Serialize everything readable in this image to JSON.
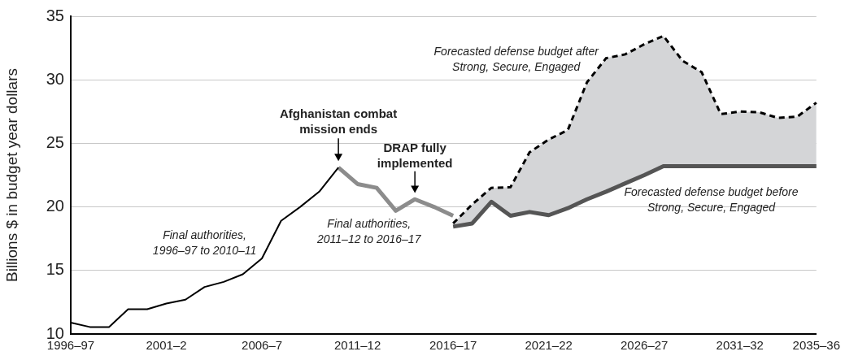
{
  "chart_data": {
    "type": "line",
    "ylabel": "Billions $ in budget year dollars",
    "categories": [
      "1996–97",
      null,
      null,
      null,
      null,
      "2001–2",
      null,
      null,
      null,
      null,
      "2006–7",
      null,
      null,
      null,
      null,
      "2011–12",
      null,
      null,
      null,
      null,
      "2016–17",
      null,
      null,
      null,
      null,
      "2021–22",
      null,
      null,
      null,
      null,
      "2026–27",
      null,
      null,
      null,
      null,
      "2031–32",
      null,
      null,
      null,
      "2035–36"
    ],
    "series": [
      {
        "color": "#000000",
        "line_style": "solid",
        "values": [
          10.9,
          10.55,
          10.55,
          11.95,
          11.95,
          12.4,
          12.7,
          13.7,
          14.1,
          14.7,
          15.95,
          18.9,
          20.0,
          21.2,
          23.1,
          null,
          null,
          null,
          null,
          null,
          null,
          null,
          null,
          null,
          null,
          null,
          null,
          null,
          null,
          null,
          null,
          null,
          null,
          null,
          null,
          null,
          null,
          null,
          null,
          null
        ]
      },
      {
        "color": "#8c8c8c",
        "line_style": "solid",
        "values": [
          null,
          null,
          null,
          null,
          null,
          null,
          null,
          null,
          null,
          null,
          null,
          null,
          null,
          null,
          23.1,
          21.8,
          21.5,
          19.7,
          20.6,
          20.0,
          19.3,
          null,
          null,
          null,
          null,
          null,
          null,
          null,
          null,
          null,
          null,
          null,
          null,
          null,
          null,
          null,
          null,
          null,
          null,
          null
        ]
      },
      {
        "color": "#555555",
        "line_style": "solid",
        "values": [
          null,
          null,
          null,
          null,
          null,
          null,
          null,
          null,
          null,
          null,
          null,
          null,
          null,
          null,
          null,
          null,
          null,
          null,
          null,
          null,
          18.45,
          18.7,
          20.4,
          19.3,
          19.6,
          19.35,
          19.9,
          20.6,
          21.2,
          21.85,
          22.5,
          23.2,
          23.2,
          23.2,
          23.2,
          23.2,
          23.2,
          23.2,
          23.2,
          23.2
        ]
      },
      {
        "type": "area",
        "color": "#d4d5d7",
        "line_style": "dashed",
        "values": [
          null,
          null,
          null,
          null,
          null,
          null,
          null,
          null,
          null,
          null,
          null,
          null,
          null,
          null,
          null,
          null,
          null,
          null,
          null,
          null,
          18.7,
          20.2,
          21.5,
          21.55,
          24.3,
          25.3,
          26.05,
          29.8,
          31.7,
          32.0,
          32.8,
          33.45,
          31.5,
          30.6,
          27.3,
          27.5,
          27.45,
          27.0,
          27.1,
          28.2
        ]
      }
    ],
    "ylim": [
      10,
      35
    ],
    "yticks": [
      10,
      15,
      20,
      25,
      30,
      35
    ],
    "grid": "y",
    "marker": "none",
    "annotations": [
      {
        "text": "Afghanistan combat mission ends",
        "y": 23.1
      },
      {
        "text": "DRAP fully implemented",
        "y": 20.6
      },
      "Final authorities, 1996–97 to 2010–11",
      "Final authorities, 2011–12 to 2016–17",
      "Forecasted defense budget after Strong, Secure, Engaged",
      "Forecasted defense budget before Strong, Secure, Engaged"
    ]
  }
}
